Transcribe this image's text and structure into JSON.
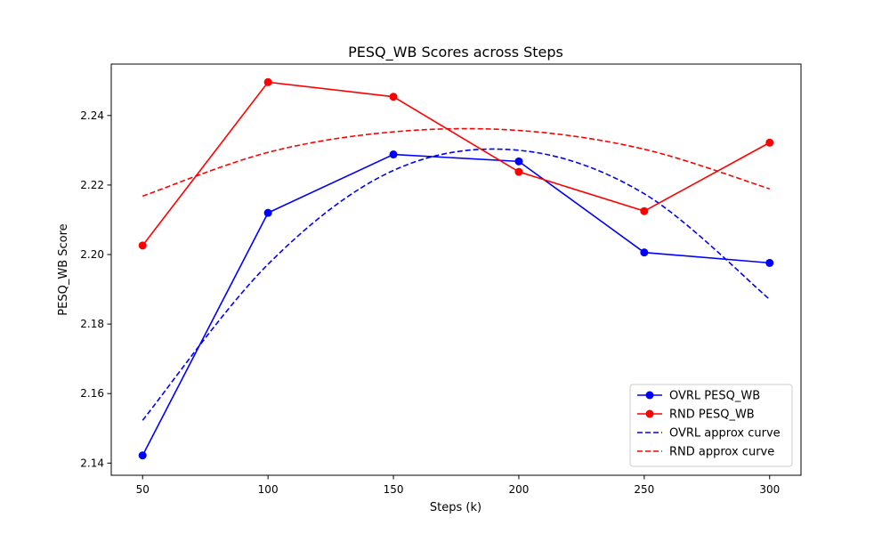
{
  "chart_data": {
    "type": "line",
    "title": "PESQ_WB Scores across Steps",
    "xlabel": "Steps (k)",
    "ylabel": "PESQ_WB Score",
    "x": [
      50,
      100,
      150,
      200,
      250,
      300
    ],
    "xlim": [
      37.5,
      312.5
    ],
    "ylim": [
      2.1365,
      2.2548
    ],
    "xticks": [
      50,
      100,
      150,
      200,
      250,
      300
    ],
    "yticks": [
      2.14,
      2.16,
      2.18,
      2.2,
      2.22,
      2.24
    ],
    "ytick_labels": [
      "2.14",
      "2.16",
      "2.18",
      "2.20",
      "2.22",
      "2.24"
    ],
    "grid": false,
    "legend_position": "lower-right",
    "series": [
      {
        "name": "OVRL PESQ_WB",
        "style": "solid-marker",
        "color": "#0000ff",
        "values": [
          2.1422,
          2.212,
          2.2288,
          2.2268,
          2.2006,
          2.1976
        ]
      },
      {
        "name": "RND PESQ_WB",
        "style": "solid-marker",
        "color": "#ff0000",
        "values": [
          2.2026,
          2.2496,
          2.2454,
          2.2238,
          2.2125,
          2.2322
        ]
      },
      {
        "name": "OVRL approx curve",
        "style": "dashed",
        "color": "#0000ff",
        "values": [
          2.1523,
          2.1972,
          2.2242,
          2.23,
          2.2175,
          2.1871
        ]
      },
      {
        "name": "RND approx curve",
        "style": "dashed",
        "color": "#ff0000",
        "values": [
          2.2168,
          2.2294,
          2.2353,
          2.2357,
          2.2303,
          2.2189
        ]
      }
    ]
  }
}
